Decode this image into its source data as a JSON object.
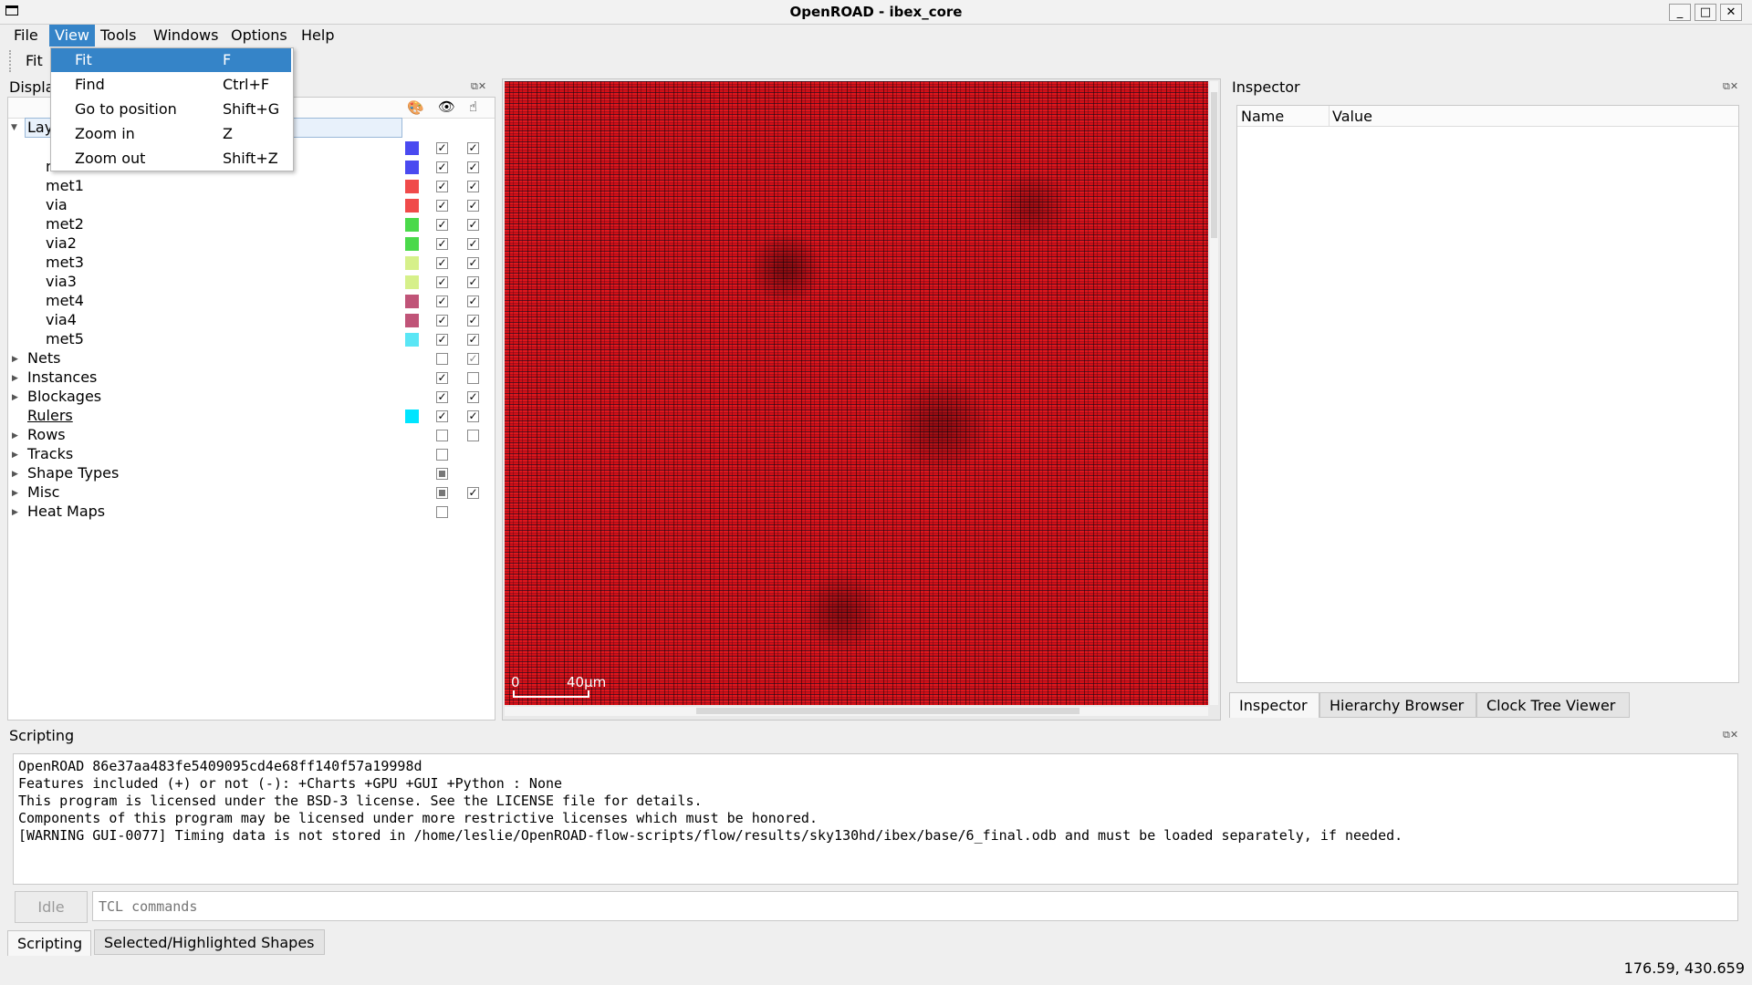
{
  "window": {
    "title": "OpenROAD - ibex_core",
    "controls": {
      "minimize": "_",
      "maximize": "□",
      "close": "✕"
    }
  },
  "menubar": {
    "items": [
      "File",
      "View",
      "Tools",
      "Windows",
      "Options",
      "Help"
    ],
    "open_menu": "View"
  },
  "view_menu": {
    "items": [
      {
        "label": "Fit",
        "shortcut": "F"
      },
      {
        "label": "Find",
        "shortcut": "Ctrl+F"
      },
      {
        "label": "Go to position",
        "shortcut": "Shift+G"
      },
      {
        "label": "Zoom in",
        "shortcut": "Z"
      },
      {
        "label": "Zoom out",
        "shortcut": "Shift+Z"
      }
    ],
    "selected": "Fit"
  },
  "toolbar": {
    "fit_label": "Fit"
  },
  "display_panel": {
    "title": "Displa",
    "root_label": "Lay",
    "layers": [
      {
        "name": "",
        "color": "#4a4af0",
        "visible": true,
        "selectable": true
      },
      {
        "name": "mcon",
        "color": "#4a4af0",
        "visible": true,
        "selectable": true
      },
      {
        "name": "met1",
        "color": "#f04a4a",
        "visible": true,
        "selectable": true
      },
      {
        "name": "via",
        "color": "#f04a4a",
        "visible": true,
        "selectable": true
      },
      {
        "name": "met2",
        "color": "#4ad94a",
        "visible": true,
        "selectable": true
      },
      {
        "name": "via2",
        "color": "#4ad94a",
        "visible": true,
        "selectable": true
      },
      {
        "name": "met3",
        "color": "#d6f08a",
        "visible": true,
        "selectable": true
      },
      {
        "name": "via3",
        "color": "#d6f08a",
        "visible": true,
        "selectable": true
      },
      {
        "name": "met4",
        "color": "#c05478",
        "visible": true,
        "selectable": true
      },
      {
        "name": "via4",
        "color": "#c05478",
        "visible": true,
        "selectable": true
      },
      {
        "name": "met5",
        "color": "#5ae6f5",
        "visible": true,
        "selectable": true
      }
    ],
    "groups": [
      {
        "name": "Nets",
        "color": "",
        "visible": "off",
        "selectable": "grey"
      },
      {
        "name": "Instances",
        "color": "",
        "visible": "on",
        "selectable": "off"
      },
      {
        "name": "Blockages",
        "color": "",
        "visible": "on",
        "selectable": "on"
      },
      {
        "name": "Rulers",
        "color": "#00e5ff",
        "visible": "on",
        "selectable": "on"
      },
      {
        "name": "Rows",
        "color": "",
        "visible": "off",
        "selectable": "off"
      },
      {
        "name": "Tracks",
        "color": "",
        "visible": "off",
        "selectable": "none"
      },
      {
        "name": "Shape Types",
        "color": "",
        "visible": "partial",
        "selectable": "none"
      },
      {
        "name": "Misc",
        "color": "",
        "visible": "partial",
        "selectable": "on"
      },
      {
        "name": "Heat Maps",
        "color": "",
        "visible": "off",
        "selectable": "none"
      }
    ]
  },
  "layout_view": {
    "scale_zero": "0",
    "scale_label": "40μm"
  },
  "inspector": {
    "title": "Inspector",
    "columns": [
      "Name",
      "Value"
    ],
    "tabs": [
      "Inspector",
      "Hierarchy Browser",
      "Clock Tree Viewer"
    ]
  },
  "scripting": {
    "title": "Scripting",
    "lines": [
      "OpenROAD 86e37aa483fe5409095cd4e68ff140f57a19998d",
      "Features included (+) or not (-): +Charts +GPU +GUI +Python : None",
      "This program is licensed under the BSD-3 license. See the LICENSE file for details.",
      "Components of this program may be licensed under more restrictive licenses which must be honored.",
      "[WARNING GUI-0077] Timing data is not stored in /home/leslie/OpenROAD-flow-scripts/flow/results/sky130hd/ibex/base/6_final.odb and must be loaded separately, if needed."
    ],
    "status_button": "Idle",
    "input_placeholder": "TCL commands",
    "tabs": [
      "Scripting",
      "Selected/Highlighted Shapes"
    ]
  },
  "statusbar": {
    "coordinates": "176.59, 430.659"
  }
}
